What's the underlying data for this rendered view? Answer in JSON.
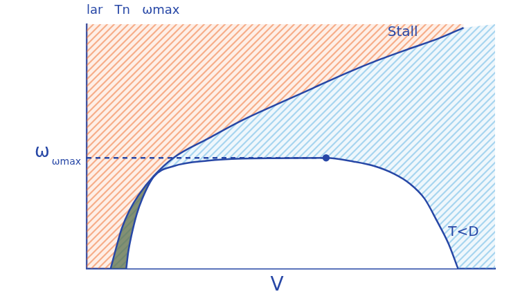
{
  "chart_data": {
    "type": "line",
    "title": "lar   Tn   ωmax",
    "x_label": "V",
    "y_label": "ω",
    "xlim": [
      0,
      11
    ],
    "ylim": [
      0,
      7
    ],
    "grid": false,
    "tick_labels": false,
    "series": [
      {
        "name": "Stall",
        "color": "#2747a6",
        "line_style": "solid",
        "marker": "none",
        "x": [
          0.65,
          0.8,
          0.95,
          1.15,
          1.4,
          1.81,
          2.34,
          3.27,
          4.2,
          5.14,
          6.1,
          7.0,
          7.85,
          8.7,
          9.5,
          10.15
        ],
        "values": [
          0,
          0.6,
          1.15,
          1.65,
          2.1,
          2.65,
          3.17,
          3.72,
          4.25,
          4.71,
          5.17,
          5.6,
          5.97,
          6.3,
          6.6,
          6.9
        ]
      },
      {
        "name": "T<D",
        "color": "#2747a6",
        "line_style": "solid",
        "marker": "none",
        "x": [
          1.07,
          1.12,
          1.21,
          1.35,
          1.5,
          1.81,
          2.34,
          3.27,
          4.2,
          5.14,
          6.45,
          7.2,
          7.76,
          8.3,
          8.69,
          9.1,
          9.44,
          9.75,
          10.0
        ],
        "values": [
          0,
          0.45,
          0.95,
          1.55,
          2.0,
          2.63,
          2.93,
          3.09,
          3.15,
          3.16,
          3.17,
          3.06,
          2.93,
          2.7,
          2.44,
          2.0,
          1.35,
          0.7,
          0
        ]
      },
      {
        "name": "ωmax",
        "color": "#2747a6",
        "line_style": "dashed",
        "marker": "end_dot",
        "x": [
          0,
          6.45
        ],
        "values": [
          3.17,
          3.17
        ]
      }
    ]
  }
}
